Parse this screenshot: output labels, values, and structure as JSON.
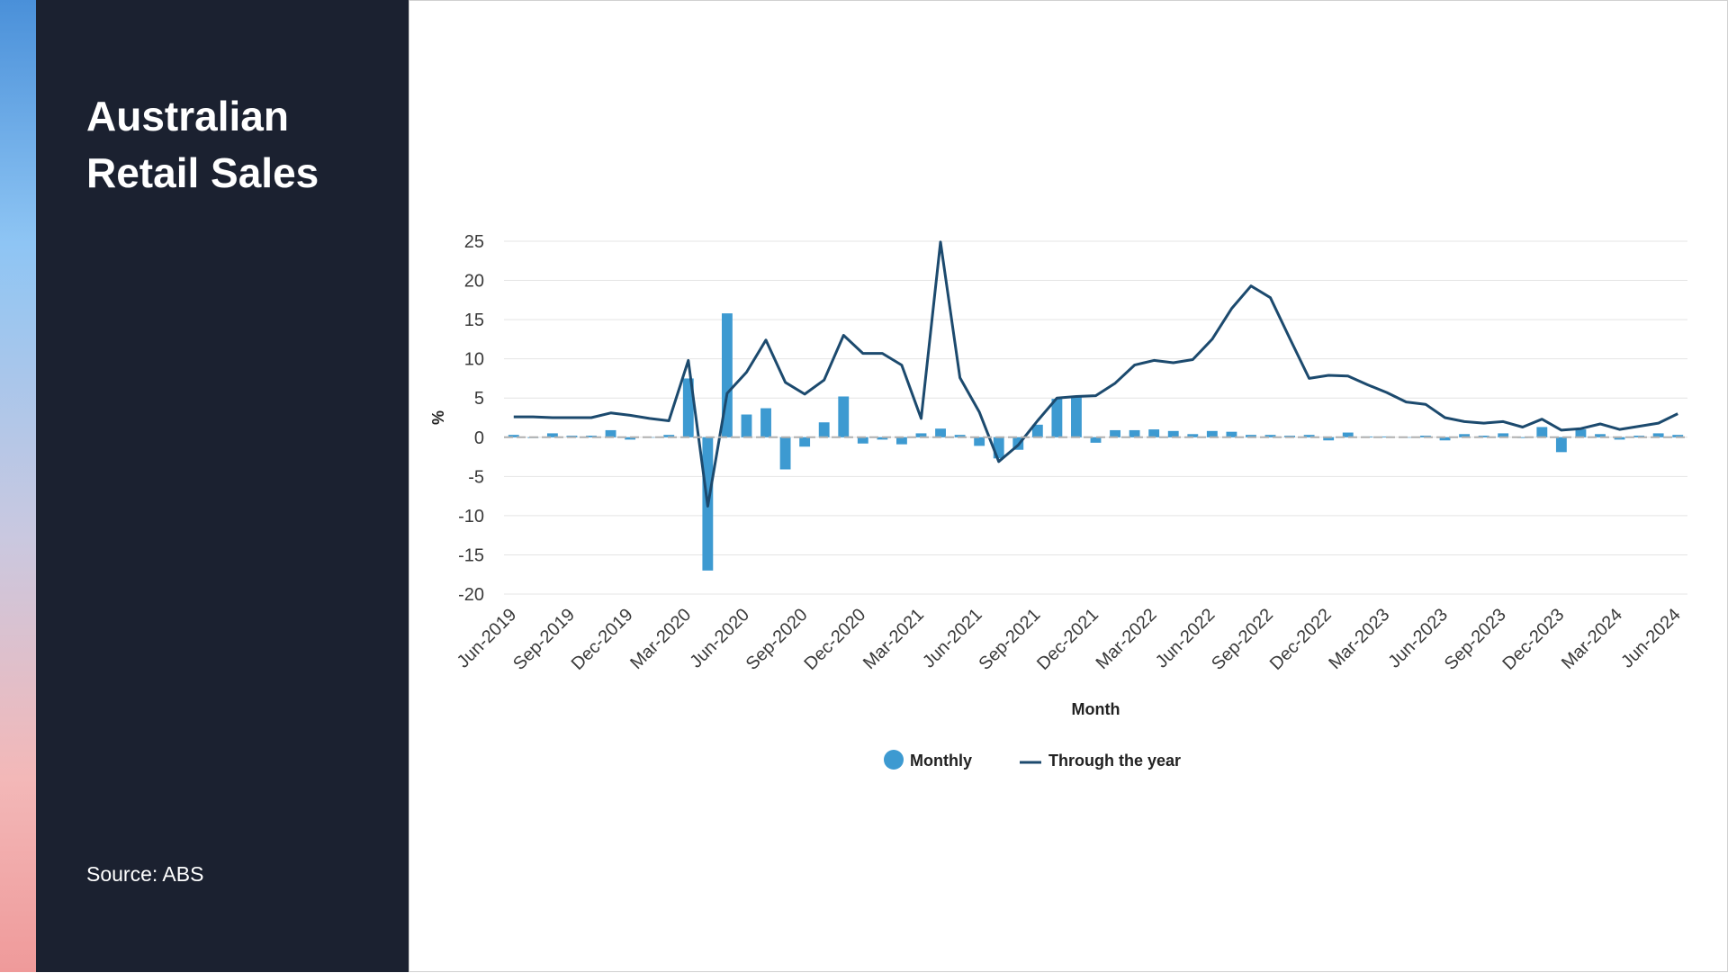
{
  "slide": {
    "title": "Australian Retail Sales",
    "source": "Source: ABS"
  },
  "colors": {
    "panel_bg": "#1b2130",
    "bar": "#3d9ad1",
    "line": "#1c4a6e",
    "zero_line": "#b0b0b0"
  },
  "chart_data": {
    "type": "bar+line",
    "xlabel": "Month",
    "ylabel": "%",
    "ylim": [
      -20,
      25
    ],
    "yticks": [
      25,
      20,
      15,
      10,
      5,
      0,
      -5,
      -10,
      -15,
      -20
    ],
    "grid": true,
    "legend_position": "bottom",
    "x_tick_labels": [
      "Jun-2019",
      "Sep-2019",
      "Dec-2019",
      "Mar-2020",
      "Jun-2020",
      "Sep-2020",
      "Dec-2020",
      "Mar-2021",
      "Jun-2021",
      "Sep-2021",
      "Dec-2021",
      "Mar-2022",
      "Jun-2022",
      "Sep-2022",
      "Dec-2022",
      "Mar-2023",
      "Jun-2023",
      "Sep-2023",
      "Dec-2023",
      "Mar-2024",
      "Jun-2024"
    ],
    "categories": [
      "Jun-2019",
      "Jul-2019",
      "Aug-2019",
      "Sep-2019",
      "Oct-2019",
      "Nov-2019",
      "Dec-2019",
      "Jan-2020",
      "Feb-2020",
      "Mar-2020",
      "Apr-2020",
      "May-2020",
      "Jun-2020",
      "Jul-2020",
      "Aug-2020",
      "Sep-2020",
      "Oct-2020",
      "Nov-2020",
      "Dec-2020",
      "Jan-2021",
      "Feb-2021",
      "Mar-2021",
      "Apr-2021",
      "May-2021",
      "Jun-2021",
      "Jul-2021",
      "Aug-2021",
      "Sep-2021",
      "Oct-2021",
      "Nov-2021",
      "Dec-2021",
      "Jan-2022",
      "Feb-2022",
      "Mar-2022",
      "Apr-2022",
      "May-2022",
      "Jun-2022",
      "Jul-2022",
      "Aug-2022",
      "Sep-2022",
      "Oct-2022",
      "Nov-2022",
      "Dec-2022",
      "Jan-2023",
      "Feb-2023",
      "Mar-2023",
      "Apr-2023",
      "May-2023",
      "Jun-2023",
      "Jul-2023",
      "Aug-2023",
      "Sep-2023",
      "Oct-2023",
      "Nov-2023",
      "Dec-2023",
      "Jan-2024",
      "Feb-2024",
      "Mar-2024",
      "Apr-2024",
      "May-2024",
      "Jun-2024"
    ],
    "series": [
      {
        "name": "Monthly",
        "type": "bar",
        "values": [
          0.3,
          -0.1,
          0.5,
          0.2,
          0.2,
          0.9,
          -0.3,
          0.0,
          0.3,
          7.5,
          -17.0,
          15.8,
          2.9,
          3.7,
          -4.1,
          -1.2,
          1.9,
          5.2,
          -0.8,
          -0.3,
          -0.9,
          0.5,
          1.1,
          0.3,
          -1.1,
          -2.7,
          -1.6,
          1.6,
          4.9,
          5.3,
          -0.7,
          0.9,
          0.9,
          1.0,
          0.8,
          0.4,
          0.8,
          0.7,
          0.3,
          0.3,
          0.2,
          0.3,
          -0.4,
          0.6,
          0.1,
          0.1,
          0.0,
          0.2,
          -0.4,
          0.4,
          0.2,
          0.5,
          -0.1,
          1.3,
          -1.9,
          1.0,
          0.4,
          -0.3,
          0.2,
          0.5,
          0.3
        ]
      },
      {
        "name": "Through the year",
        "type": "line",
        "values": [
          2.6,
          2.6,
          2.5,
          2.5,
          2.5,
          3.1,
          2.8,
          2.4,
          2.1,
          9.8,
          -8.8,
          5.6,
          8.3,
          12.4,
          7.0,
          5.5,
          7.3,
          13.0,
          10.7,
          10.7,
          9.2,
          2.4,
          24.9,
          7.6,
          3.2,
          -3.1,
          -1.0,
          2.1,
          5.0,
          5.2,
          5.3,
          6.9,
          9.2,
          9.8,
          9.5,
          9.9,
          12.5,
          16.4,
          19.3,
          17.8,
          12.6,
          7.5,
          7.9,
          7.8,
          6.7,
          5.7,
          4.5,
          4.2,
          2.5,
          2.0,
          1.8,
          2.0,
          1.3,
          2.3,
          0.9,
          1.1,
          1.7,
          1.0,
          1.4,
          1.8,
          3.0
        ]
      }
    ]
  }
}
